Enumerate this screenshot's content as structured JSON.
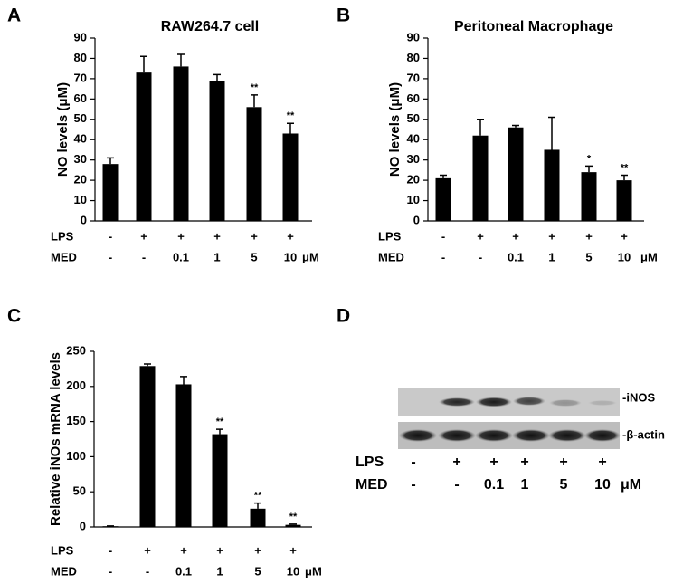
{
  "chart_data": [
    {
      "type": "bar",
      "panel": "A",
      "title": "RAW264.7 cell",
      "ylabel": "NO levels (μM)",
      "color": "#000000",
      "values": [
        28,
        73,
        76,
        69,
        56,
        43
      ],
      "errors": [
        3,
        8,
        6,
        3,
        6,
        5
      ],
      "significance": [
        null,
        null,
        null,
        null,
        "**",
        "**"
      ],
      "ylim": [
        0,
        90
      ],
      "yticks": [
        0,
        10,
        20,
        30,
        40,
        50,
        60,
        70,
        80,
        90
      ],
      "rows": [
        {
          "label": "LPS",
          "values": [
            "-",
            "+",
            "+",
            "+",
            "+",
            "+"
          ]
        },
        {
          "label": "MED",
          "values": [
            "-",
            "-",
            "0.1",
            "1",
            "5",
            "10"
          ]
        }
      ],
      "unit": "μM"
    },
    {
      "type": "bar",
      "panel": "B",
      "title": "Peritoneal Macrophage",
      "ylabel": "NO levels (μM)",
      "color": "#000000",
      "values": [
        21,
        42,
        46,
        35,
        24,
        20
      ],
      "errors": [
        1.5,
        8,
        1,
        16,
        3,
        2.5
      ],
      "significance": [
        null,
        null,
        null,
        null,
        "*",
        "**"
      ],
      "ylim": [
        0,
        90
      ],
      "yticks": [
        0,
        10,
        20,
        30,
        40,
        50,
        60,
        70,
        80,
        90
      ],
      "rows": [
        {
          "label": "LPS",
          "values": [
            "-",
            "+",
            "+",
            "+",
            "+",
            "+"
          ]
        },
        {
          "label": "MED",
          "values": [
            "-",
            "-",
            "0.1",
            "1",
            "5",
            "10"
          ]
        }
      ],
      "unit": "μM"
    },
    {
      "type": "bar",
      "panel": "C",
      "ylabel": "Relative iNOs mRNA levels",
      "color": "#000000",
      "values": [
        1,
        229,
        203,
        132,
        26,
        3
      ],
      "errors": [
        0.5,
        3,
        11,
        7,
        8,
        1
      ],
      "significance": [
        null,
        null,
        null,
        "**",
        "**",
        "**"
      ],
      "ylim": [
        0,
        250
      ],
      "yticks": [
        0,
        50,
        100,
        150,
        200,
        250
      ],
      "rows": [
        {
          "label": "LPS",
          "values": [
            "-",
            "+",
            "+",
            "+",
            "+",
            "+"
          ]
        },
        {
          "label": "MED",
          "values": [
            "-",
            "-",
            "0.1",
            "1",
            "5",
            "10"
          ]
        }
      ],
      "unit": "μM"
    }
  ],
  "blot": {
    "panel": "D",
    "bands": [
      "-iNOS",
      "-β-actin"
    ],
    "rows": [
      {
        "label": "LPS",
        "values": [
          "-",
          "+",
          "+",
          "+",
          "+",
          "+"
        ]
      },
      {
        "label": "MED",
        "values": [
          "-",
          "-",
          "0.1",
          "1",
          "5",
          "10"
        ]
      }
    ],
    "unit": "μM"
  }
}
